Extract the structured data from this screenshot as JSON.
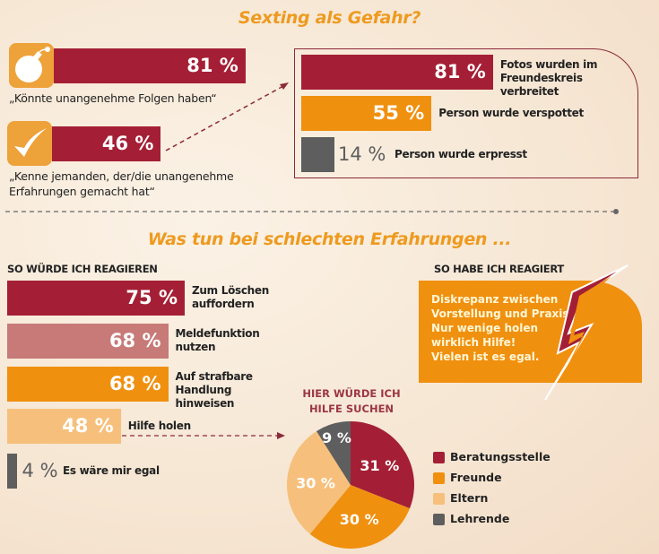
{
  "sections": {
    "top_title": "Sexting als Gefahr?",
    "bottom_title": "Was tun bei schlechten Erfahrungen ...",
    "would_react_heading": "SO WÜRDE ICH REAGIEREN",
    "did_react_heading": "SO HABE ICH REAGIERT",
    "did_react_text": [
      "Diskrepanz zwischen",
      "Vorstellung und Praxis:",
      "Nur wenige holen",
      "wirklich Hilfe!",
      "Vielen ist es egal."
    ],
    "pie_title": [
      "HIER WÜRDE ICH",
      "HILFE SUCHEN"
    ]
  },
  "colors": {
    "red": "#a41f35",
    "orange": "#f0900f",
    "light_orange": "#f6c07c",
    "rose": "#c77a77",
    "gray": "#5e5e5e",
    "title_orange": "#ee9a1f",
    "icon_box": "#eea23a"
  },
  "icons": [
    "bomb-icon",
    "checkmark-icon",
    "lightning-icon",
    "dashed-arrow-icon"
  ],
  "chart_data": [
    {
      "type": "bar",
      "orientation": "horizontal",
      "categories": [
        "„Könnte unangenehme Folgen haben“",
        "„Kenne jemanden, der/die unangenehme Erfahrungen gemacht hat“"
      ],
      "values": [
        81,
        46
      ],
      "labels": [
        "81 %",
        "46 %"
      ],
      "colors": [
        "#a41f35",
        "#a41f35"
      ]
    },
    {
      "type": "bar",
      "orientation": "horizontal",
      "categories": [
        "Fotos wurden im Freundeskreis verbreitet",
        "Person wurde verspottet",
        "Person wurde erpresst"
      ],
      "values": [
        81,
        55,
        14
      ],
      "labels": [
        "81 %",
        "55 %",
        "14 %"
      ],
      "colors": [
        "#a41f35",
        "#f0900f",
        "#5e5e5e"
      ]
    },
    {
      "type": "bar",
      "orientation": "horizontal",
      "title": "SO WÜRDE ICH REAGIEREN",
      "categories": [
        "Zum Löschen auffordern",
        "Meldefunktion nutzen",
        "Auf strafbare Handlung hinweisen",
        "Hilfe holen",
        "Es wäre mir egal"
      ],
      "values": [
        75,
        68,
        68,
        48,
        4
      ],
      "labels": [
        "75 %",
        "68 %",
        "68 %",
        "48 %",
        "4 %"
      ],
      "colors": [
        "#a41f35",
        "#c77a77",
        "#f0900f",
        "#f6c07c",
        "#5e5e5e"
      ]
    },
    {
      "type": "pie",
      "title": "HIER WÜRDE ICH HILFE SUCHEN",
      "categories": [
        "Beratungsstelle",
        "Freunde",
        "Eltern",
        "Lehrende"
      ],
      "values": [
        31,
        30,
        30,
        9
      ],
      "labels": [
        "31 %",
        "30 %",
        "30 %",
        "9 %"
      ],
      "colors": [
        "#a41f35",
        "#f0900f",
        "#f6c07c",
        "#5e5e5e"
      ],
      "legend": "right"
    }
  ]
}
